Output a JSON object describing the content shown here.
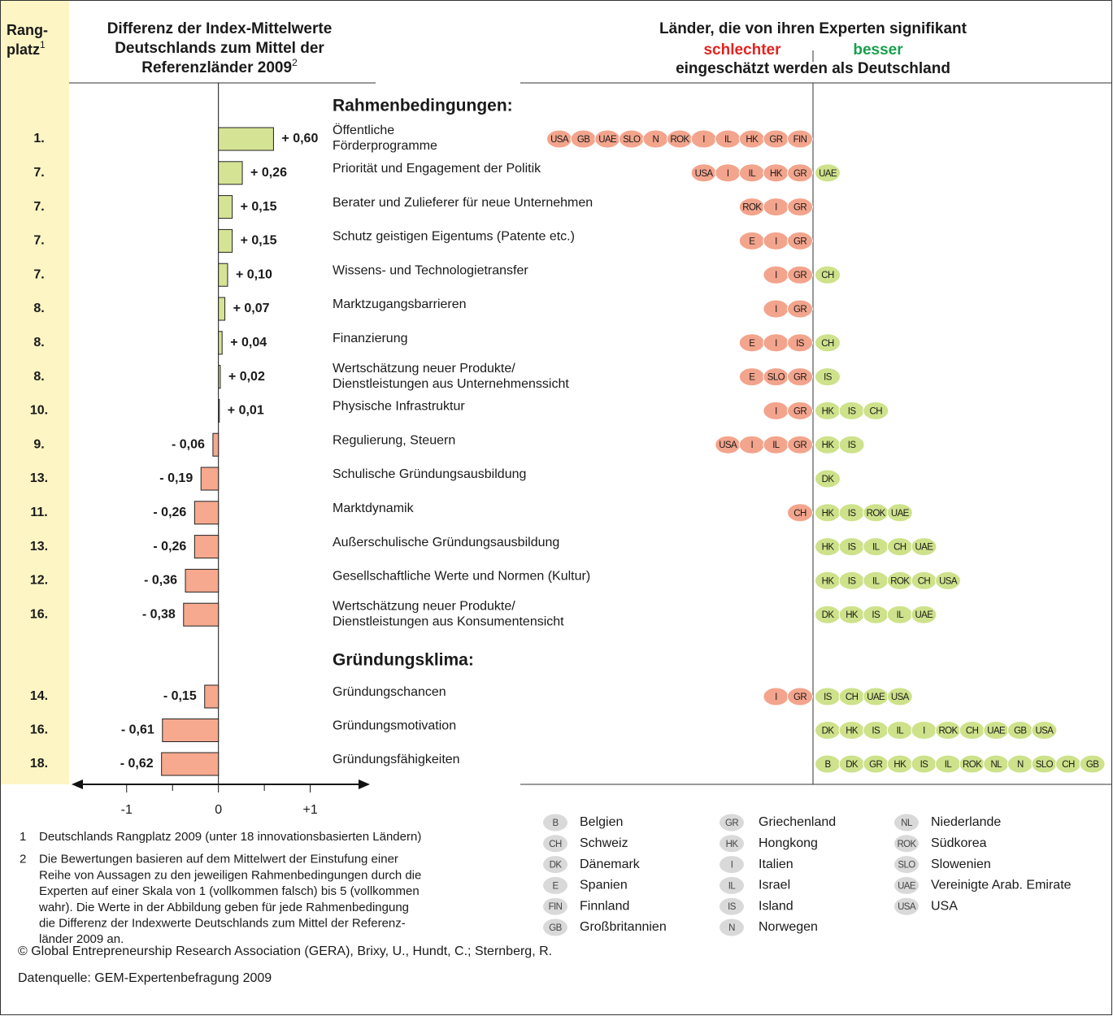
{
  "chart_data": {
    "type": "bar",
    "rank_header": [
      "Rang-",
      "platz"
    ],
    "rank_header_note": "1",
    "title_lines": [
      "Differenz der Index-Mittelwerte",
      "Deutschlands zum Mittel der",
      "Referenzländer 2009"
    ],
    "title_note": "2",
    "right_title": "Länder, die von ihren Experten signifikant",
    "worse_label": "schlechter",
    "better_label": "besser",
    "right_subtitle": "eingeschätzt werden als Deutschland",
    "positive_color": "#d5e394",
    "negative_color": "#f6a98e",
    "worse_color": "#f3a48c",
    "better_color": "#cde28a",
    "legend_badge_color": "#d9d9d9",
    "xlim": [
      -1.6,
      1.65
    ],
    "xticks": [
      -1,
      0,
      {
        "value": 1,
        "label": "+1"
      }
    ],
    "xminorticks": [
      -0.5,
      0.5
    ],
    "sections": [
      {
        "title": "Rahmenbedingungen:",
        "ranks": [
          "1.",
          "7.",
          "7.",
          "7.",
          "7.",
          "8.",
          "8.",
          "8.",
          "10.",
          "9.",
          "13.",
          "11.",
          "13.",
          "12.",
          "16."
        ],
        "categories": [
          [
            "Öffentliche",
            "Förderprogramme"
          ],
          [
            "Priorität und Engagement der Politik"
          ],
          [
            "Berater und Zulieferer für neue Unternehmen"
          ],
          [
            "Schutz geistigen Eigentums (Patente etc.)"
          ],
          [
            "Wissens- und Technologietransfer"
          ],
          [
            "Marktzugangsbarrieren"
          ],
          [
            "Finanzierung"
          ],
          [
            "Wertschätzung neuer Produkte/",
            "Dienstleistungen aus Unternehmenssicht"
          ],
          [
            "Physische Infrastruktur"
          ],
          [
            "Regulierung, Steuern"
          ],
          [
            "Schulische Gründungsausbildung"
          ],
          [
            "Marktdynamik"
          ],
          [
            "Außerschulische Gründungsausbildung"
          ],
          [
            "Gesellschaftliche Werte und Normen (Kultur)"
          ],
          [
            "Wertschätzung neuer Produkte/",
            "Dienstleistungen aus Konsumentensicht"
          ]
        ],
        "values": [
          0.6,
          0.26,
          0.15,
          0.15,
          0.1,
          0.07,
          0.04,
          0.02,
          0.01,
          -0.06,
          -0.19,
          -0.26,
          -0.26,
          -0.36,
          -0.38
        ],
        "value_labels": [
          "+ 0,60",
          "+ 0,26",
          "+ 0,15",
          "+ 0,15",
          "+ 0,10",
          "+ 0,07",
          "+ 0,04",
          "+ 0,02",
          "+ 0,01",
          "- 0,06",
          "- 0,19",
          "- 0,26",
          "- 0,26",
          "- 0,36",
          "- 0,38"
        ],
        "worse": [
          [
            "USA",
            "GB",
            "UAE",
            "SLO",
            "N",
            "ROK",
            "I",
            "IL",
            "HK",
            "GR",
            "FIN"
          ],
          [
            "USA",
            "I",
            "IL",
            "HK",
            "GR"
          ],
          [
            "ROK",
            "I",
            "GR"
          ],
          [
            "E",
            "I",
            "GR"
          ],
          [
            "I",
            "GR"
          ],
          [
            "I",
            "GR"
          ],
          [
            "E",
            "I",
            "IS"
          ],
          [
            "E",
            "SLO",
            "GR"
          ],
          [
            "I",
            "GR"
          ],
          [
            "USA",
            "I",
            "IL",
            "GR"
          ],
          [],
          [
            "CH"
          ],
          [],
          [],
          []
        ],
        "better": [
          [],
          [
            "UAE"
          ],
          [],
          [],
          [
            "CH"
          ],
          [],
          [
            "CH"
          ],
          [
            "IS"
          ],
          [
            "HK",
            "IS",
            "CH"
          ],
          [
            "HK",
            "IS"
          ],
          [
            "DK"
          ],
          [
            "HK",
            "IS",
            "ROK",
            "UAE"
          ],
          [
            "HK",
            "IS",
            "IL",
            "CH",
            "UAE"
          ],
          [
            "HK",
            "IS",
            "IL",
            "ROK",
            "CH",
            "USA"
          ],
          [
            "DK",
            "HK",
            "IS",
            "IL",
            "UAE"
          ]
        ]
      },
      {
        "title": "Gründungsklima:",
        "ranks": [
          "14.",
          "16.",
          "18."
        ],
        "categories": [
          [
            "Gründungschancen"
          ],
          [
            "Gründungsmotivation"
          ],
          [
            "Gründungsfähigkeiten"
          ]
        ],
        "values": [
          -0.15,
          -0.61,
          -0.62
        ],
        "value_labels": [
          "- 0,15",
          "- 0,61",
          "- 0,62"
        ],
        "worse": [
          [
            "I",
            "GR"
          ],
          [],
          []
        ],
        "better": [
          [
            "IS",
            "CH",
            "UAE",
            "USA"
          ],
          [
            "DK",
            "HK",
            "IS",
            "IL",
            "I",
            "ROK",
            "CH",
            "UAE",
            "GB",
            "USA"
          ],
          [
            "B",
            "DK",
            "GR",
            "HK",
            "IS",
            "IL",
            "ROK",
            "NL",
            "N",
            "SLO",
            "CH",
            "GB"
          ]
        ]
      }
    ],
    "legend": [
      {
        "code": "B",
        "name": "Belgien"
      },
      {
        "code": "CH",
        "name": "Schweiz"
      },
      {
        "code": "DK",
        "name": "Dänemark"
      },
      {
        "code": "E",
        "name": "Spanien"
      },
      {
        "code": "FIN",
        "name": "Finnland"
      },
      {
        "code": "GB",
        "name": "Großbritannien"
      },
      {
        "code": "GR",
        "name": "Griechenland"
      },
      {
        "code": "HK",
        "name": "Hongkong"
      },
      {
        "code": "I",
        "name": "Italien"
      },
      {
        "code": "IL",
        "name": "Israel"
      },
      {
        "code": "IS",
        "name": "Island"
      },
      {
        "code": "N",
        "name": "Norwegen"
      },
      {
        "code": "NL",
        "name": "Niederlande"
      },
      {
        "code": "ROK",
        "name": "Südkorea"
      },
      {
        "code": "SLO",
        "name": "Slowenien"
      },
      {
        "code": "UAE",
        "name": "Vereinigte Arab. Emirate"
      },
      {
        "code": "USA",
        "name": "USA"
      }
    ],
    "footnotes": [
      {
        "number": "1",
        "lines": [
          "Deutschlands Rangplatz 2009 (unter 18 innovationsbasierten Ländern)"
        ]
      },
      {
        "number": "2",
        "lines": [
          "Die Bewertungen basieren auf dem Mittelwert der Einstufung einer",
          "Reihe von Aussagen zu den jeweiligen Rahmenbedingungen durch die",
          "Experten auf einer Skala von 1 (vollkommen falsch) bis 5 (vollkommen",
          "wahr). Die Werte in der Abbildung geben für jede Rahmenbedingung",
          "die Differenz der Indexwerte Deutschlands zum Mittel der Referenz-",
          "länder 2009 an."
        ]
      }
    ],
    "copyright": "© Global Entrepreneurship Research Association (GERA), Brixy, U., Hundt, C.; Sternberg, R.",
    "source": "Datenquelle: GEM-Expertenbefragung 2009"
  }
}
